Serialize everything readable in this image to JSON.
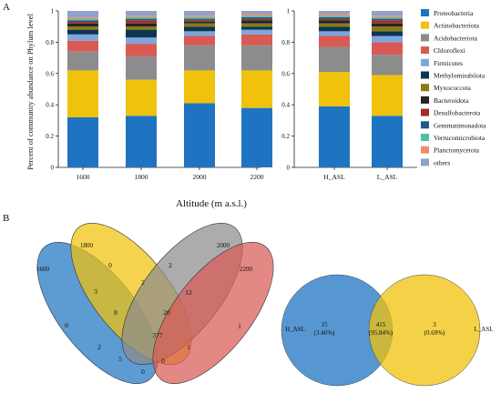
{
  "panel_a_label": "A",
  "panel_b_label": "B",
  "chart_data": [
    {
      "type": "bar",
      "stacked": true,
      "ylabel": "Percent of community abundance on Phylum level",
      "xlabel": "Altitude (m a.s.l.)",
      "ylim": [
        0,
        1
      ],
      "yticks": [
        "0",
        "0.2",
        "0.4",
        "0.6",
        "0.8",
        "1"
      ],
      "groups": [
        {
          "categories": [
            "1600",
            "1800",
            "2000",
            "2200"
          ]
        },
        {
          "categories": [
            "H_ASL",
            "L_ASL"
          ]
        }
      ],
      "legend_placement": "right",
      "series": [
        {
          "name": "Proteobacteria",
          "color": "#1f74c2",
          "values": [
            0.32,
            0.33,
            0.41,
            0.38,
            0.39,
            0.33
          ]
        },
        {
          "name": "Actinobacteriota",
          "color": "#f1c20b",
          "values": [
            0.3,
            0.23,
            0.21,
            0.24,
            0.22,
            0.26
          ]
        },
        {
          "name": "Acidobacteriota",
          "color": "#8c8c8c",
          "values": [
            0.12,
            0.15,
            0.16,
            0.16,
            0.16,
            0.13
          ]
        },
        {
          "name": "Chloroflexi",
          "color": "#d85a55",
          "values": [
            0.07,
            0.08,
            0.06,
            0.07,
            0.07,
            0.08
          ]
        },
        {
          "name": "Firmicutes",
          "color": "#7ea6dc",
          "values": [
            0.04,
            0.04,
            0.03,
            0.03,
            0.03,
            0.04
          ]
        },
        {
          "name": "Methylomirabilota",
          "color": "#0d3553",
          "values": [
            0.03,
            0.05,
            0.03,
            0.02,
            0.03,
            0.03
          ]
        },
        {
          "name": "Myxococcota",
          "color": "#8a7b12",
          "values": [
            0.02,
            0.02,
            0.02,
            0.02,
            0.02,
            0.03
          ]
        },
        {
          "name": "Bacteroidota",
          "color": "#252525",
          "values": [
            0.02,
            0.02,
            0.01,
            0.02,
            0.02,
            0.02
          ]
        },
        {
          "name": "Desulfobacterota",
          "color": "#a32a2a",
          "values": [
            0.01,
            0.02,
            0.01,
            0.01,
            0.01,
            0.02
          ]
        },
        {
          "name": "Gemmatimonadota",
          "color": "#1d5a88",
          "values": [
            0.01,
            0.01,
            0.01,
            0.01,
            0.01,
            0.01
          ]
        },
        {
          "name": "Verrucomicrobiota",
          "color": "#4ec3a1",
          "values": [
            0.01,
            0.01,
            0.01,
            0.01,
            0.01,
            0.01
          ]
        },
        {
          "name": "Planctomycetota",
          "color": "#f08c6c",
          "values": [
            0.01,
            0.01,
            0.01,
            0.01,
            0.01,
            0.01
          ]
        },
        {
          "name": "others",
          "color": "#8fa1cc",
          "values": [
            0.04,
            0.03,
            0.03,
            0.02,
            0.02,
            0.03
          ]
        }
      ]
    },
    {
      "type": "venn",
      "sets": [
        {
          "name": "1600",
          "color": "#1f74c2"
        },
        {
          "name": "1800",
          "color": "#f1c20b"
        },
        {
          "name": "2000",
          "color": "#8c8c8c"
        },
        {
          "name": "2200",
          "color": "#d85a55"
        }
      ],
      "regions": [
        {
          "sets": [
            "1600"
          ],
          "value": "0"
        },
        {
          "sets": [
            "1800"
          ],
          "value": "0"
        },
        {
          "sets": [
            "2000"
          ],
          "value": "2"
        },
        {
          "sets": [
            "2200"
          ],
          "value": "1"
        },
        {
          "sets": [
            "1600",
            "1800"
          ],
          "value": "3"
        },
        {
          "sets": [
            "1800",
            "2000"
          ],
          "value": "2"
        },
        {
          "sets": [
            "2000",
            "2200"
          ],
          "value": "12"
        },
        {
          "sets": [
            "1600",
            "2200"
          ],
          "value": "0"
        },
        {
          "sets": [
            "1600",
            "1800",
            "2000"
          ],
          "value": "8"
        },
        {
          "sets": [
            "1800",
            "2000",
            "2200"
          ],
          "value": "20"
        },
        {
          "sets": [
            "1600",
            "1800",
            "2200"
          ],
          "value": "5"
        },
        {
          "sets": [
            "1600",
            "2000",
            "2200"
          ],
          "value": "1"
        },
        {
          "sets": [
            "1600",
            "2000"
          ],
          "value": "2"
        },
        {
          "sets": [
            "1800",
            "2200"
          ],
          "value": "0"
        },
        {
          "sets": [
            "1600",
            "1800",
            "2000",
            "2200"
          ],
          "value": "377"
        }
      ]
    },
    {
      "type": "venn",
      "sets": [
        {
          "name": "H_ASL",
          "color": "#1f74c2"
        },
        {
          "name": "L_ASL",
          "color": "#f1c20b"
        }
      ],
      "regions": [
        {
          "sets": [
            "H_ASL"
          ],
          "value": "15",
          "percent": "(3.46%)"
        },
        {
          "sets": [
            "H_ASL",
            "L_ASL"
          ],
          "value": "415",
          "percent": "(95.84%)"
        },
        {
          "sets": [
            "L_ASL"
          ],
          "value": "3",
          "percent": "(0.69%)"
        }
      ]
    }
  ]
}
